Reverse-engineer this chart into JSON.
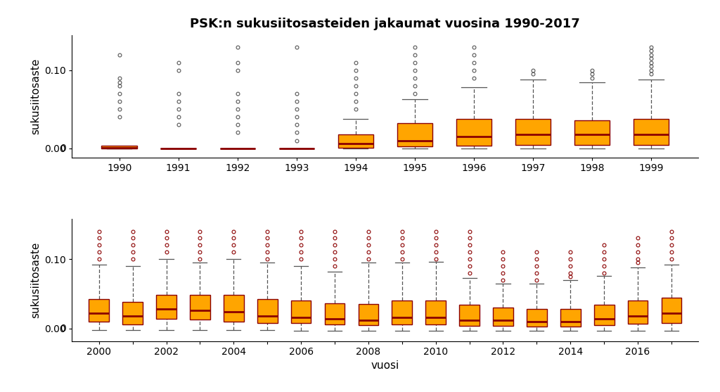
{
  "title": "PSK:n sukusiitosasteiden jakaumat vuosina 1990-2017",
  "ylabel": "sukusiitosaste",
  "xlabel": "vuosi",
  "box_color": "#FFA500",
  "median_color": "#8B0000",
  "whisker_color": "#555555",
  "outlier_color_top": "#555555",
  "outlier_color_bottom": "#8B0000",
  "background_color": "#ffffff",
  "title_fontsize": 13,
  "label_fontsize": 11,
  "tick_fontsize": 10,
  "top_panel": {
    "years": [
      1990,
      1991,
      1992,
      1993,
      1994,
      1995,
      1996,
      1997,
      1998,
      1999
    ],
    "data": [
      {
        "q1": 0.0,
        "median": 0.001,
        "q3": 0.003,
        "whislo": 0.0,
        "whishi": 0.0,
        "fliers_high": [
          0.04,
          0.05,
          0.06,
          0.07,
          0.08,
          0.085,
          0.09,
          0.12
        ]
      },
      {
        "q1": -0.0005,
        "median": -0.0005,
        "q3": 0.0,
        "whislo": -0.0005,
        "whishi": 0.0,
        "fliers_high": [
          0.03,
          0.04,
          0.05,
          0.06,
          0.07,
          0.1,
          0.11
        ]
      },
      {
        "q1": -0.0005,
        "median": -0.0005,
        "q3": 0.0,
        "whislo": -0.0005,
        "whishi": 0.0,
        "fliers_high": [
          0.02,
          0.03,
          0.04,
          0.05,
          0.06,
          0.07,
          0.1,
          0.11,
          0.13
        ]
      },
      {
        "q1": -0.0005,
        "median": -0.0005,
        "q3": 0.0,
        "whislo": -0.0005,
        "whishi": 0.0,
        "fliers_high": [
          0.01,
          0.02,
          0.03,
          0.04,
          0.05,
          0.06,
          0.07,
          0.13
        ]
      },
      {
        "q1": 0.001,
        "median": 0.006,
        "q3": 0.018,
        "whislo": 0.0,
        "whishi": 0.038,
        "fliers_high": [
          0.05,
          0.06,
          0.07,
          0.08,
          0.09,
          0.1,
          0.11
        ]
      },
      {
        "q1": 0.002,
        "median": 0.01,
        "q3": 0.032,
        "whislo": 0.0,
        "whishi": 0.063,
        "fliers_high": [
          0.07,
          0.08,
          0.09,
          0.1,
          0.11,
          0.12,
          0.13
        ]
      },
      {
        "q1": 0.003,
        "median": 0.015,
        "q3": 0.038,
        "whislo": 0.0,
        "whishi": 0.078,
        "fliers_high": [
          0.09,
          0.1,
          0.11,
          0.12,
          0.13
        ]
      },
      {
        "q1": 0.004,
        "median": 0.018,
        "q3": 0.038,
        "whislo": 0.0,
        "whishi": 0.088,
        "fliers_high": [
          0.095,
          0.1
        ]
      },
      {
        "q1": 0.004,
        "median": 0.018,
        "q3": 0.036,
        "whislo": 0.0,
        "whishi": 0.085,
        "fliers_high": [
          0.09,
          0.095,
          0.1
        ]
      },
      {
        "q1": 0.004,
        "median": 0.018,
        "q3": 0.038,
        "whislo": 0.0,
        "whishi": 0.088,
        "fliers_high": [
          0.095,
          0.1,
          0.105,
          0.11,
          0.115,
          0.12,
          0.125,
          0.13
        ]
      }
    ],
    "ylim": [
      -0.012,
      0.145
    ],
    "yticks": [
      0.0,
      0.1
    ],
    "xtick_labels": [
      "1990",
      "1991",
      "1992",
      "1993",
      "1994",
      "1995",
      "1996",
      "1997",
      "1998",
      "1999"
    ]
  },
  "bottom_panel": {
    "years": [
      2000,
      2001,
      2002,
      2003,
      2004,
      2005,
      2006,
      2007,
      2008,
      2009,
      2010,
      2011,
      2012,
      2013,
      2014,
      2015,
      2016,
      2017
    ],
    "data": [
      {
        "q1": 0.01,
        "median": 0.022,
        "q3": 0.042,
        "whislo": -0.002,
        "whishi": 0.092,
        "fliers_high": [
          0.1,
          0.11,
          0.12,
          0.13,
          0.14
        ],
        "fliers_low": []
      },
      {
        "q1": 0.006,
        "median": 0.018,
        "q3": 0.038,
        "whislo": -0.002,
        "whishi": 0.09,
        "fliers_high": [
          0.1,
          0.11,
          0.12,
          0.13,
          0.14
        ],
        "fliers_low": []
      },
      {
        "q1": 0.014,
        "median": 0.028,
        "q3": 0.048,
        "whislo": -0.002,
        "whishi": 0.1,
        "fliers_high": [
          0.11,
          0.12,
          0.13,
          0.14
        ],
        "fliers_low": []
      },
      {
        "q1": 0.013,
        "median": 0.026,
        "q3": 0.048,
        "whislo": -0.002,
        "whishi": 0.095,
        "fliers_high": [
          0.1,
          0.11,
          0.12,
          0.13,
          0.14
        ],
        "fliers_low": []
      },
      {
        "q1": 0.01,
        "median": 0.024,
        "q3": 0.048,
        "whislo": -0.002,
        "whishi": 0.1,
        "fliers_high": [
          0.11,
          0.12,
          0.13,
          0.14
        ],
        "fliers_low": []
      },
      {
        "q1": 0.008,
        "median": 0.018,
        "q3": 0.042,
        "whislo": -0.002,
        "whishi": 0.095,
        "fliers_high": [
          0.1,
          0.11,
          0.12,
          0.13,
          0.14
        ],
        "fliers_low": []
      },
      {
        "q1": 0.008,
        "median": 0.016,
        "q3": 0.04,
        "whislo": -0.003,
        "whishi": 0.09,
        "fliers_high": [
          0.1,
          0.11,
          0.12,
          0.13,
          0.14
        ],
        "fliers_low": []
      },
      {
        "q1": 0.006,
        "median": 0.014,
        "q3": 0.036,
        "whislo": -0.003,
        "whishi": 0.082,
        "fliers_high": [
          0.09,
          0.1,
          0.11,
          0.12,
          0.13,
          0.14
        ],
        "fliers_low": []
      },
      {
        "q1": 0.005,
        "median": 0.012,
        "q3": 0.035,
        "whislo": -0.003,
        "whishi": 0.095,
        "fliers_high": [
          0.1,
          0.11,
          0.12,
          0.13,
          0.14
        ],
        "fliers_low": []
      },
      {
        "q1": 0.006,
        "median": 0.016,
        "q3": 0.04,
        "whislo": -0.003,
        "whishi": 0.095,
        "fliers_high": [
          0.1,
          0.11,
          0.12,
          0.13,
          0.14
        ],
        "fliers_low": []
      },
      {
        "q1": 0.006,
        "median": 0.016,
        "q3": 0.04,
        "whislo": -0.003,
        "whishi": 0.096,
        "fliers_high": [
          0.1,
          0.11,
          0.12,
          0.13,
          0.14
        ],
        "fliers_low": []
      },
      {
        "q1": 0.004,
        "median": 0.012,
        "q3": 0.034,
        "whislo": -0.003,
        "whishi": 0.073,
        "fliers_high": [
          0.08,
          0.09,
          0.1,
          0.11,
          0.12,
          0.13,
          0.14
        ],
        "fliers_low": []
      },
      {
        "q1": 0.004,
        "median": 0.012,
        "q3": 0.03,
        "whislo": -0.003,
        "whishi": 0.065,
        "fliers_high": [
          0.07,
          0.08,
          0.09,
          0.1,
          0.11
        ],
        "fliers_low": []
      },
      {
        "q1": 0.003,
        "median": 0.01,
        "q3": 0.028,
        "whislo": -0.003,
        "whishi": 0.065,
        "fliers_high": [
          0.07,
          0.08,
          0.09,
          0.1,
          0.11
        ],
        "fliers_low": []
      },
      {
        "q1": 0.003,
        "median": 0.01,
        "q3": 0.028,
        "whislo": -0.003,
        "whishi": 0.07,
        "fliers_high": [
          0.075,
          0.08,
          0.09,
          0.1,
          0.11
        ],
        "fliers_low": []
      },
      {
        "q1": 0.005,
        "median": 0.014,
        "q3": 0.034,
        "whislo": -0.003,
        "whishi": 0.076,
        "fliers_high": [
          0.08,
          0.09,
          0.1,
          0.11,
          0.12
        ],
        "fliers_low": []
      },
      {
        "q1": 0.007,
        "median": 0.018,
        "q3": 0.04,
        "whislo": -0.003,
        "whishi": 0.088,
        "fliers_high": [
          0.095,
          0.1,
          0.11,
          0.12,
          0.13
        ],
        "fliers_low": []
      },
      {
        "q1": 0.008,
        "median": 0.022,
        "q3": 0.044,
        "whislo": -0.003,
        "whishi": 0.092,
        "fliers_high": [
          0.1,
          0.11,
          0.12,
          0.13,
          0.14
        ],
        "fliers_low": []
      }
    ],
    "ylim": [
      -0.018,
      0.158
    ],
    "yticks": [
      0.0,
      0.1
    ],
    "xtick_labels": [
      "2000",
      "",
      "2002",
      "",
      "2004",
      "",
      "2006",
      "",
      "2008",
      "",
      "2010",
      "",
      "2012",
      "",
      "2014",
      "",
      "2016",
      ""
    ]
  }
}
